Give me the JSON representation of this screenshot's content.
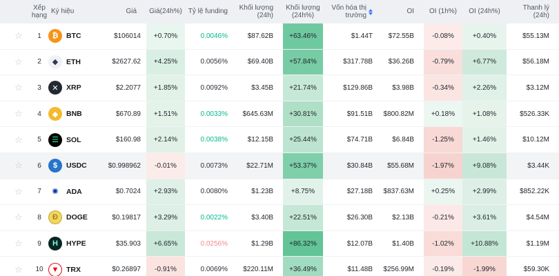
{
  "table": {
    "star_glyph": "☆",
    "headers": {
      "star": "",
      "rank": "Xếp hạng",
      "symbol": "Ký hiệu",
      "price": "Giá",
      "chg24": "Giá(24h%)",
      "funding": "Tỷ lệ funding",
      "vol24": "Khối lượng (24h)",
      "vol24p": "Khối lượng (24h%)",
      "mcap": "Vốn hóa thị trường",
      "oi": "OI",
      "oi1h": "OI (1h%)",
      "oi24h": "OI (24h%)",
      "liq": "Thanh lý (24h)"
    },
    "colors": {
      "funding_green": "#00b98c",
      "funding_red": "#f58a8a",
      "funding_neutral": "#2b2f36",
      "sort_arrow": "#3873fa",
      "header_bg": "#eef0f3",
      "highlight_row_bg": "#f3f4f6"
    },
    "rows": [
      {
        "rank": "1",
        "symbol": "BTC",
        "icon": {
          "name": "btc-coin-icon",
          "glyph": "₿",
          "fg": "#ffffff",
          "bg": "#f7931a"
        },
        "price": "$106014",
        "chg24": {
          "v": "+0.70%",
          "bg": "#e9f6ef"
        },
        "funding": {
          "v": "0.0046%",
          "color": "#00b98c"
        },
        "vol24": "$87.62B",
        "vol24p": {
          "v": "+63.46%",
          "bg": "#6fc9a0"
        },
        "mcap": "$1.44T",
        "oi": "$72.55B",
        "oi1h": {
          "v": "-0.08%",
          "bg": "#fcebe9"
        },
        "oi24h": {
          "v": "+0.40%",
          "bg": "#e7f4ee"
        },
        "liq": "$55.13M"
      },
      {
        "rank": "2",
        "symbol": "ETH",
        "icon": {
          "name": "eth-coin-icon",
          "glyph": "◆",
          "fg": "#34384c",
          "bg": "#f0f1f5"
        },
        "price": "$2627.62",
        "chg24": {
          "v": "+4.25%",
          "bg": "#d9efe4"
        },
        "funding": {
          "v": "0.0056%",
          "color": "#2b2f36"
        },
        "vol24": "$69.40B",
        "vol24p": {
          "v": "+57.84%",
          "bg": "#77cca5"
        },
        "mcap": "$317.78B",
        "oi": "$36.26B",
        "oi1h": {
          "v": "-0.79%",
          "bg": "#f9dedb"
        },
        "oi24h": {
          "v": "+6.77%",
          "bg": "#cfeadd"
        },
        "liq": "$56.18M"
      },
      {
        "rank": "3",
        "symbol": "XRP",
        "icon": {
          "name": "xrp-coin-icon",
          "glyph": "✕",
          "fg": "#ffffff",
          "bg": "#23292f"
        },
        "price": "$2.2077",
        "chg24": {
          "v": "+1.85%",
          "bg": "#e2f2e9"
        },
        "funding": {
          "v": "0.0092%",
          "color": "#2b2f36"
        },
        "vol24": "$3.45B",
        "vol24p": {
          "v": "+21.74%",
          "bg": "#c6e9d7"
        },
        "mcap": "$129.86B",
        "oi": "$3.98B",
        "oi1h": {
          "v": "-0.34%",
          "bg": "#fbe5e2"
        },
        "oi24h": {
          "v": "+2.26%",
          "bg": "#dff1e8"
        },
        "liq": "$3.12M"
      },
      {
        "rank": "4",
        "symbol": "BNB",
        "icon": {
          "name": "bnb-coin-icon",
          "glyph": "◆",
          "fg": "#ffffff",
          "bg": "#f3ba2f"
        },
        "price": "$670.89",
        "chg24": {
          "v": "+1.51%",
          "bg": "#e4f3ea"
        },
        "funding": {
          "v": "0.0033%",
          "color": "#00b98c"
        },
        "vol24": "$645.63M",
        "vol24p": {
          "v": "+30.81%",
          "bg": "#aedfc7"
        },
        "mcap": "$91.51B",
        "oi": "$800.82M",
        "oi1h": {
          "v": "+0.18%",
          "bg": "#edf7f2"
        },
        "oi24h": {
          "v": "+1.08%",
          "bg": "#e5f3eb"
        },
        "liq": "$526.33K"
      },
      {
        "rank": "5",
        "symbol": "SOL",
        "icon": {
          "name": "sol-coin-icon",
          "glyph": "☰",
          "fg": "#19fb9b",
          "bg": "#000000"
        },
        "price": "$160.98",
        "chg24": {
          "v": "+2.14%",
          "bg": "#e1f1e8"
        },
        "funding": {
          "v": "0.0038%",
          "color": "#00b98c"
        },
        "vol24": "$12.15B",
        "vol24p": {
          "v": "+25.44%",
          "bg": "#bce4d0"
        },
        "mcap": "$74.71B",
        "oi": "$6.84B",
        "oi1h": {
          "v": "-1.25%",
          "bg": "#f8d9d5"
        },
        "oi24h": {
          "v": "+1.46%",
          "bg": "#e3f2e9"
        },
        "liq": "$10.12M"
      },
      {
        "rank": "6",
        "symbol": "USDC",
        "icon": {
          "name": "usdc-coin-icon",
          "glyph": "$",
          "fg": "#ffffff",
          "bg": "#2775ca"
        },
        "row_bg": "#f3f4f6",
        "price": "$0.998962",
        "chg24": {
          "v": "-0.01%",
          "bg": "#fcece9"
        },
        "funding": {
          "v": "0.0073%",
          "color": "#2b2f36"
        },
        "vol24": "$22.71M",
        "vol24p": {
          "v": "+53.37%",
          "bg": "#7ecfaa"
        },
        "mcap": "$30.84B",
        "oi": "$55.68M",
        "oi1h": {
          "v": "-1.97%",
          "bg": "#f7d3cf"
        },
        "oi24h": {
          "v": "+9.08%",
          "bg": "#c9e7d8"
        },
        "liq": "$3.44K"
      },
      {
        "rank": "7",
        "symbol": "ADA",
        "icon": {
          "name": "ada-coin-icon",
          "glyph": "✺",
          "fg": "#0033ad",
          "bg": "#ffffff"
        },
        "price": "$0.7024",
        "chg24": {
          "v": "+2.93%",
          "bg": "#def0e7"
        },
        "funding": {
          "v": "0.0080%",
          "color": "#2b2f36"
        },
        "vol24": "$1.23B",
        "vol24p": {
          "v": "+8.75%",
          "bg": "#e1f2ea"
        },
        "mcap": "$27.18B",
        "oi": "$837.63M",
        "oi1h": {
          "v": "+0.25%",
          "bg": "#ebf6f1"
        },
        "oi24h": {
          "v": "+2.99%",
          "bg": "#ddefe6"
        },
        "liq": "$852.22K"
      },
      {
        "rank": "8",
        "symbol": "DOGE",
        "icon": {
          "name": "doge-coin-icon",
          "glyph": "Ð",
          "fg": "#a8811c",
          "bg": "#f0d75e",
          "border": "#c9a633"
        },
        "price": "$0.19817",
        "chg24": {
          "v": "+3.29%",
          "bg": "#ddefe6"
        },
        "funding": {
          "v": "0.0022%",
          "color": "#00b98c"
        },
        "vol24": "$3.40B",
        "vol24p": {
          "v": "+22.51%",
          "bg": "#c5e8d6"
        },
        "mcap": "$26.30B",
        "oi": "$2.13B",
        "oi1h": {
          "v": "-0.21%",
          "bg": "#fce9e7"
        },
        "oi24h": {
          "v": "+3.61%",
          "bg": "#daeee5"
        },
        "liq": "$4.54M"
      },
      {
        "rank": "9",
        "symbol": "HYPE",
        "icon": {
          "name": "hype-coin-icon",
          "glyph": "H",
          "fg": "#8ff0d9",
          "bg": "#062723"
        },
        "price": "$35.903",
        "chg24": {
          "v": "+6.65%",
          "bg": "#c9e8d9"
        },
        "funding": {
          "v": "0.0256%",
          "color": "#f58a8a"
        },
        "vol24": "$1.29B",
        "vol24p": {
          "v": "+86.32%",
          "bg": "#62c497"
        },
        "mcap": "$12.07B",
        "oi": "$1.40B",
        "oi1h": {
          "v": "-1.02%",
          "bg": "#f9dcd8"
        },
        "oi24h": {
          "v": "+10.88%",
          "bg": "#c4e6d5"
        },
        "liq": "$1.19M"
      },
      {
        "rank": "10",
        "symbol": "TRX",
        "icon": {
          "name": "trx-coin-icon",
          "glyph": "▼",
          "fg": "#e50915",
          "bg": "#ffffff",
          "border": "#e50915"
        },
        "price": "$0.26897",
        "chg24": {
          "v": "-0.91%",
          "bg": "#fbe3e0"
        },
        "funding": {
          "v": "0.0069%",
          "color": "#2b2f36"
        },
        "vol24": "$220.11M",
        "vol24p": {
          "v": "+36.49%",
          "bg": "#a2dcc0"
        },
        "mcap": "$11.48B",
        "oi": "$256.99M",
        "oi1h": {
          "v": "-0.19%",
          "bg": "#fceae8"
        },
        "oi24h": {
          "v": "-1.99%",
          "bg": "#f8d7d3"
        },
        "liq": "$59.30K"
      }
    ]
  }
}
